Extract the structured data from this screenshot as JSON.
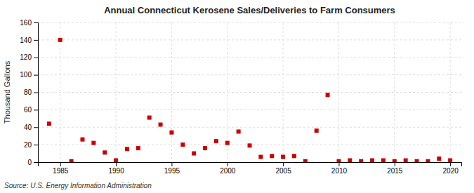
{
  "chart_data": {
    "type": "scatter",
    "title": "Annual Connecticut Kerosene Sales/Deliveries to Farm Consumers",
    "ylabel": "Thousand Gallons",
    "source": "Source: U.S. Energy Information Administration",
    "x": [
      1984,
      1985,
      1986,
      1987,
      1988,
      1989,
      1990,
      1991,
      1992,
      1993,
      1994,
      1995,
      1996,
      1997,
      1998,
      1999,
      2000,
      2001,
      2002,
      2003,
      2004,
      2005,
      2006,
      2007,
      2008,
      2009,
      2010,
      2011,
      2012,
      2013,
      2014,
      2015,
      2016,
      2017,
      2018,
      2019,
      2020
    ],
    "values": [
      44,
      140,
      1,
      26,
      22,
      11,
      2,
      15,
      16,
      51,
      43,
      34,
      20,
      10,
      16,
      24,
      22,
      35,
      19,
      6,
      7,
      6,
      7,
      1,
      36,
      77,
      1,
      2,
      1,
      2,
      2,
      1,
      2,
      1,
      1,
      4,
      2
    ],
    "color": "#cc0000",
    "marker": "square",
    "xlim": [
      1983,
      2021
    ],
    "ylim": [
      0,
      160
    ],
    "xticks": [
      1985,
      1990,
      1995,
      2000,
      2005,
      2010,
      2015,
      2020
    ],
    "yticks": [
      0,
      20,
      40,
      60,
      80,
      100,
      120,
      140,
      160
    ],
    "grid": true
  }
}
